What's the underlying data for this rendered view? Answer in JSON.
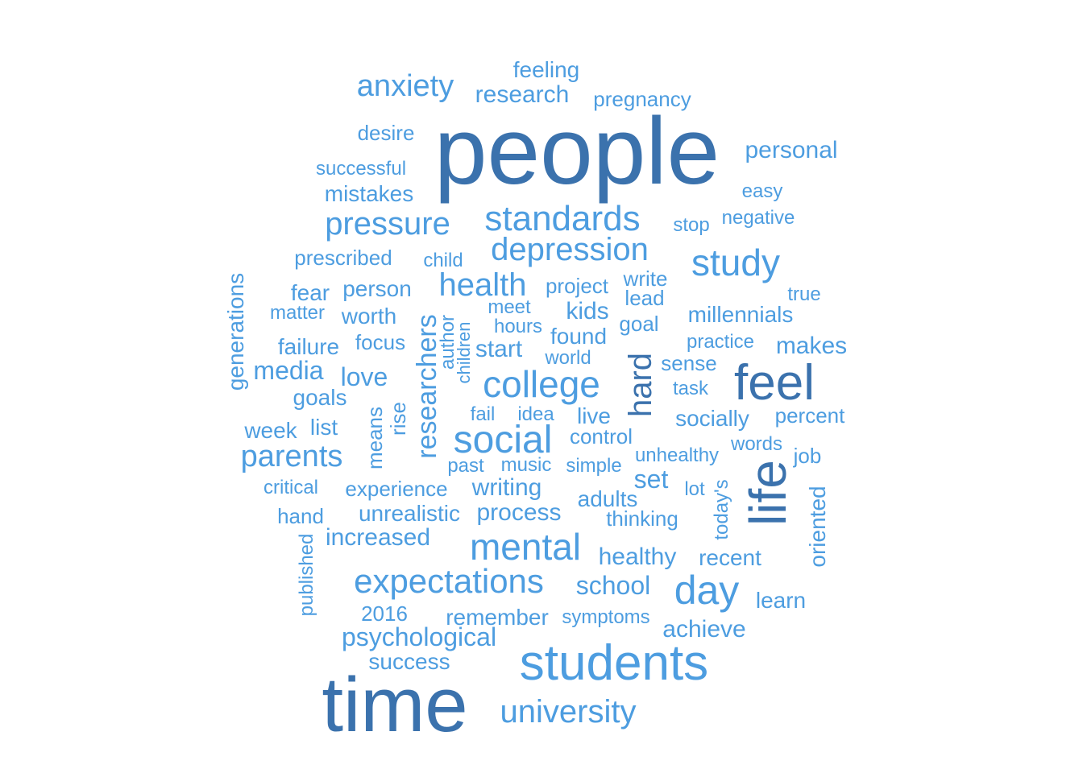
{
  "words": [
    {
      "text": "people",
      "dark": true
    },
    {
      "text": "time",
      "dark": true
    },
    {
      "text": "students"
    },
    {
      "text": "life",
      "dark": true
    },
    {
      "text": "feel",
      "dark": true
    },
    {
      "text": "social"
    },
    {
      "text": "college"
    },
    {
      "text": "mental"
    },
    {
      "text": "expectations"
    },
    {
      "text": "day"
    },
    {
      "text": "standards"
    },
    {
      "text": "depression"
    },
    {
      "text": "study"
    },
    {
      "text": "health"
    },
    {
      "text": "pressure"
    },
    {
      "text": "anxiety"
    },
    {
      "text": "hard",
      "dark": true
    },
    {
      "text": "university"
    },
    {
      "text": "parents"
    },
    {
      "text": "researchers"
    },
    {
      "text": "research"
    },
    {
      "text": "feeling"
    },
    {
      "text": "pregnancy"
    },
    {
      "text": "desire"
    },
    {
      "text": "personal"
    },
    {
      "text": "successful"
    },
    {
      "text": "mistakes"
    },
    {
      "text": "easy"
    },
    {
      "text": "stop"
    },
    {
      "text": "negative"
    },
    {
      "text": "prescribed"
    },
    {
      "text": "child"
    },
    {
      "text": "generations"
    },
    {
      "text": "fear"
    },
    {
      "text": "person"
    },
    {
      "text": "project"
    },
    {
      "text": "write"
    },
    {
      "text": "true"
    },
    {
      "text": "lead"
    },
    {
      "text": "matter"
    },
    {
      "text": "worth"
    },
    {
      "text": "meet"
    },
    {
      "text": "kids"
    },
    {
      "text": "millennials"
    },
    {
      "text": "author"
    },
    {
      "text": "children"
    },
    {
      "text": "hours"
    },
    {
      "text": "found"
    },
    {
      "text": "goal"
    },
    {
      "text": "failure"
    },
    {
      "text": "focus"
    },
    {
      "text": "start"
    },
    {
      "text": "practice"
    },
    {
      "text": "makes"
    },
    {
      "text": "world"
    },
    {
      "text": "sense"
    },
    {
      "text": "media"
    },
    {
      "text": "love"
    },
    {
      "text": "task"
    },
    {
      "text": "goals"
    },
    {
      "text": "means"
    },
    {
      "text": "rise"
    },
    {
      "text": "fail"
    },
    {
      "text": "idea"
    },
    {
      "text": "live"
    },
    {
      "text": "socially"
    },
    {
      "text": "percent"
    },
    {
      "text": "week"
    },
    {
      "text": "list"
    },
    {
      "text": "control"
    },
    {
      "text": "words"
    },
    {
      "text": "unhealthy"
    },
    {
      "text": "job"
    },
    {
      "text": "past"
    },
    {
      "text": "music"
    },
    {
      "text": "simple"
    },
    {
      "text": "critical"
    },
    {
      "text": "experience"
    },
    {
      "text": "writing"
    },
    {
      "text": "set"
    },
    {
      "text": "lot"
    },
    {
      "text": "today's"
    },
    {
      "text": "oriented"
    },
    {
      "text": "adults"
    },
    {
      "text": "hand"
    },
    {
      "text": "unrealistic"
    },
    {
      "text": "process"
    },
    {
      "text": "thinking"
    },
    {
      "text": "published"
    },
    {
      "text": "increased"
    },
    {
      "text": "healthy"
    },
    {
      "text": "recent"
    },
    {
      "text": "school"
    },
    {
      "text": "learn"
    },
    {
      "text": "2016"
    },
    {
      "text": "remember"
    },
    {
      "text": "symptoms"
    },
    {
      "text": "achieve"
    },
    {
      "text": "psychological"
    },
    {
      "text": "success"
    }
  ]
}
